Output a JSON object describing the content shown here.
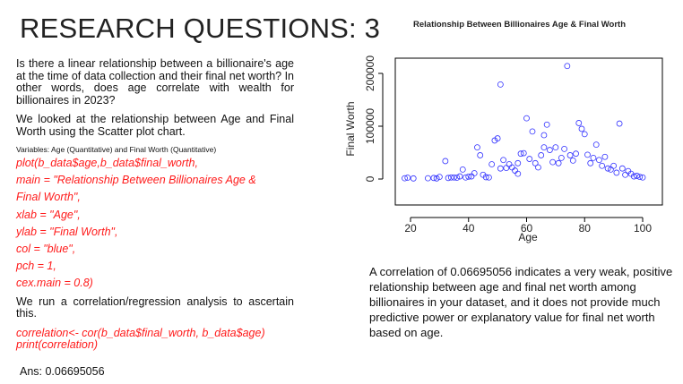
{
  "slide": {
    "title": "RESEARCH QUESTIONS: 3"
  },
  "left": {
    "question": "Is there a linear relationship between a billionaire's age at the time of data collection and their final net worth? In other words, does age correlate with wealth for billionaires in 2023?",
    "method": "We looked at the relationship between Age and Final Worth using the Scatter plot chart.",
    "variables": "Variables: Age (Quantitative) and Final Worth (Quantitative)",
    "code_plot": [
      "plot(b_data$age,b_data$final_worth,",
      "main = \"Relationship Between Billionaires Age &",
      "Final Worth\",",
      "xlab = \"Age\",",
      "ylab = \"Final Worth\",",
      "col = \"blue\",",
      "pch = 1,",
      "cex.main = 0.8)"
    ],
    "analysis_note": "We run a correlation/regression analysis to ascertain this.",
    "code_cor": [
      "correlation<- cor(b_data$final_worth, b_data$age)",
      "print(correlation)"
    ],
    "answer": "Ans: 0.06695056"
  },
  "summary": "A correlation of 0.06695056 indicates a very weak, positive relationship between age and final net worth among billionaires in your dataset, and it does not provide much predictive power or explanatory value for final net worth based on age.",
  "colors": {
    "code": "#ff1a1a",
    "points": "#3333ff",
    "text": "#111111"
  },
  "chart_data": {
    "type": "scatter",
    "title": "Relationship Between Billionaires Age & Final Worth",
    "xlabel": "Age",
    "ylabel": "Final Worth",
    "xlim": [
      15,
      105
    ],
    "ylim": [
      0,
      220000
    ],
    "x_ticks": [
      "20",
      "40",
      "60",
      "80",
      "100"
    ],
    "y_ticks": [
      "0",
      "100000",
      "200000"
    ],
    "points": [
      [
        18,
        1500
      ],
      [
        19,
        2500
      ],
      [
        21,
        1200
      ],
      [
        26,
        1500
      ],
      [
        28,
        2000
      ],
      [
        29,
        1200
      ],
      [
        30,
        4000
      ],
      [
        32,
        34000
      ],
      [
        33,
        2000
      ],
      [
        34,
        3000
      ],
      [
        35,
        3000
      ],
      [
        36,
        2500
      ],
      [
        37,
        5000
      ],
      [
        38,
        18000
      ],
      [
        39,
        3000
      ],
      [
        40,
        4500
      ],
      [
        41,
        5000
      ],
      [
        42,
        11000
      ],
      [
        43,
        60000
      ],
      [
        44,
        45000
      ],
      [
        45,
        8000
      ],
      [
        46,
        3500
      ],
      [
        47,
        3000
      ],
      [
        48,
        28000
      ],
      [
        49,
        73000
      ],
      [
        50,
        77000
      ],
      [
        51,
        20000
      ],
      [
        51,
        179000
      ],
      [
        52,
        36000
      ],
      [
        53,
        21000
      ],
      [
        54,
        28000
      ],
      [
        55,
        22000
      ],
      [
        56,
        16000
      ],
      [
        57,
        10000
      ],
      [
        57,
        30000
      ],
      [
        58,
        48000
      ],
      [
        59,
        49000
      ],
      [
        60,
        115000
      ],
      [
        61,
        38000
      ],
      [
        62,
        90000
      ],
      [
        63,
        30000
      ],
      [
        64,
        22000
      ],
      [
        65,
        45000
      ],
      [
        66,
        83000
      ],
      [
        66,
        60000
      ],
      [
        67,
        103000
      ],
      [
        68,
        55000
      ],
      [
        69,
        32000
      ],
      [
        70,
        60000
      ],
      [
        71,
        30000
      ],
      [
        72,
        40000
      ],
      [
        73,
        57000
      ],
      [
        74,
        214000
      ],
      [
        75,
        45000
      ],
      [
        76,
        35000
      ],
      [
        77,
        48000
      ],
      [
        78,
        106000
      ],
      [
        79,
        95000
      ],
      [
        80,
        85000
      ],
      [
        81,
        46000
      ],
      [
        82,
        30000
      ],
      [
        83,
        40000
      ],
      [
        84,
        65000
      ],
      [
        85,
        36000
      ],
      [
        86,
        25000
      ],
      [
        87,
        42000
      ],
      [
        88,
        20000
      ],
      [
        89,
        18000
      ],
      [
        90,
        25000
      ],
      [
        91,
        12000
      ],
      [
        92,
        105000
      ],
      [
        93,
        20000
      ],
      [
        94,
        8000
      ],
      [
        95,
        15000
      ],
      [
        96,
        10000
      ],
      [
        97,
        5000
      ],
      [
        98,
        6000
      ],
      [
        99,
        4000
      ],
      [
        100,
        3000
      ]
    ]
  }
}
